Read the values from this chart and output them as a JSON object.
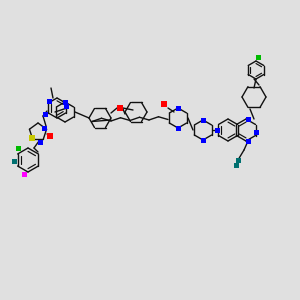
{
  "bg_color": "#e0e0e0",
  "fig_width": 3.0,
  "fig_height": 3.0,
  "dpi": 100,
  "atom_colors": {
    "N": "#0000ff",
    "O": "#ff0000",
    "S": "#c8c800",
    "Cl_green": "#00bb00",
    "Cl_teal": "#007070",
    "I": "#ff00ff",
    "NH2_teal": "#007070"
  },
  "line_color": "#111111",
  "line_width": 1.0,
  "structure": {
    "scale": 1.0
  }
}
